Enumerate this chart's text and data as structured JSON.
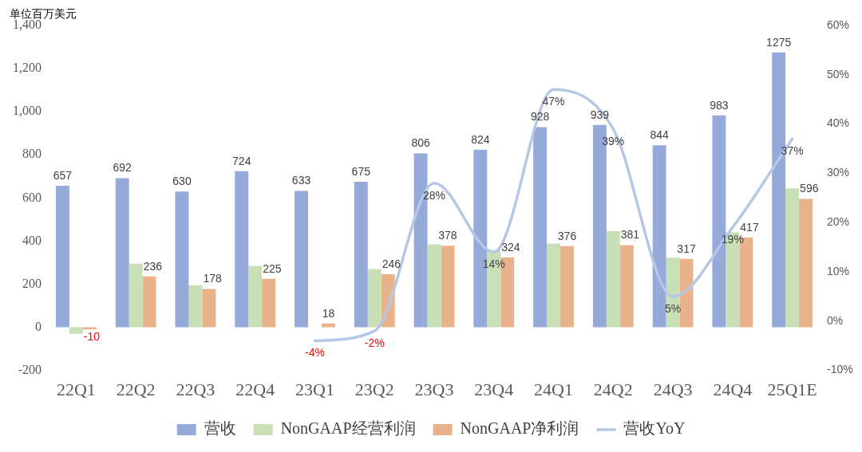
{
  "chart_data": {
    "type": "bar",
    "ylabel": "单位百万美元",
    "categories": [
      "22Q1",
      "22Q2",
      "22Q3",
      "22Q4",
      "23Q1",
      "23Q2",
      "23Q3",
      "23Q4",
      "24Q1",
      "24Q2",
      "24Q3",
      "24Q4",
      "25Q1E"
    ],
    "series": [
      {
        "name": "营收",
        "color": "#95aad9",
        "values": [
          657,
          692,
          630,
          724,
          633,
          675,
          806,
          824,
          928,
          939,
          844,
          983,
          1275
        ],
        "value_labels": [
          "657",
          "692",
          "630",
          "724",
          "633",
          "675",
          "806",
          "824",
          "928",
          "939",
          "844",
          "983",
          "1275"
        ]
      },
      {
        "name": "NonGAAP经营利润",
        "color": "#c9dfb6",
        "values": [
          -30,
          295,
          195,
          285,
          null,
          270,
          385,
          358,
          388,
          446,
          323,
          441,
          645
        ]
      },
      {
        "name": "NonGAAP净利润",
        "color": "#e9b28a",
        "values": [
          -10,
          236,
          178,
          225,
          18,
          246,
          378,
          324,
          376,
          381,
          317,
          417,
          596
        ],
        "value_labels": [
          "-10",
          "236",
          "178",
          "225",
          "18",
          "246",
          "378",
          "324",
          "376",
          "381",
          "317",
          "417",
          "596"
        ]
      },
      {
        "name": "营收YoY",
        "type": "line",
        "axis": "y2",
        "color": "#b4c7e7",
        "marker": "none",
        "values": [
          null,
          null,
          null,
          null,
          -4,
          -2,
          28,
          14,
          47,
          39,
          5,
          19,
          37
        ],
        "value_labels": [
          null,
          null,
          null,
          null,
          "-4%",
          "-2%",
          "28%",
          "14%",
          "47%",
          "39%",
          "5%",
          "19%",
          "37%"
        ]
      }
    ],
    "ylim": [
      -200,
      1400
    ],
    "yticks": [
      -200,
      0,
      200,
      400,
      600,
      800,
      {
        "value": 1000,
        "label": "1,000"
      },
      {
        "value": 1200,
        "label": "1,200"
      },
      {
        "value": 1400,
        "label": "1,400"
      }
    ],
    "y2lim": [
      -10,
      60
    ],
    "y2ticks": [
      {
        "value": -10,
        "label": "-10%"
      },
      {
        "value": 0,
        "label": "0%"
      },
      {
        "value": 10,
        "label": "10%"
      },
      {
        "value": 20,
        "label": "20%"
      },
      {
        "value": 30,
        "label": "30%"
      },
      {
        "value": 40,
        "label": "40%"
      },
      {
        "value": 50,
        "label": "50%"
      },
      {
        "value": 60,
        "label": "60%"
      }
    ],
    "grid": false,
    "legend": "bottom"
  }
}
